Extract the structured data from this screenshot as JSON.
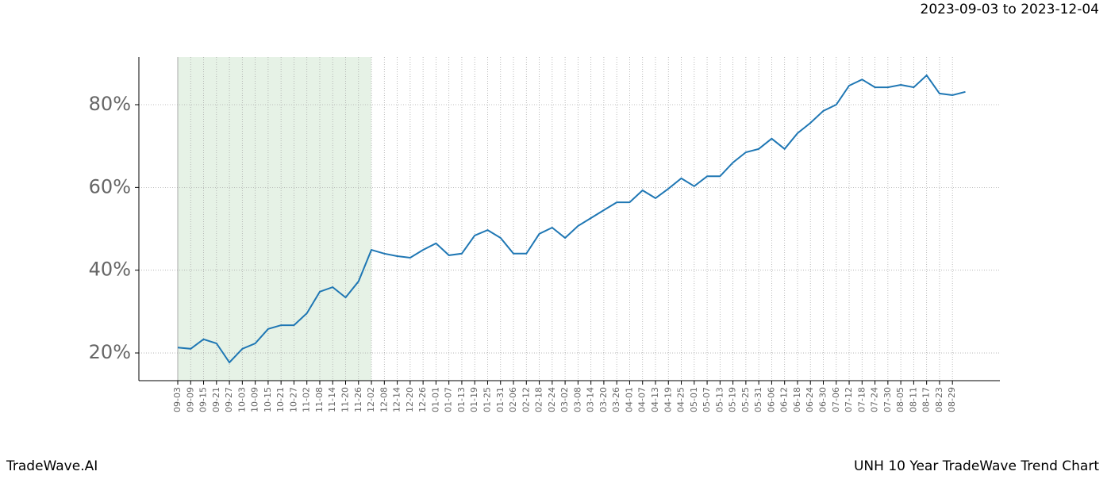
{
  "chart_data": {
    "type": "line",
    "subtitle": "2023-09-03 to 2023-12-04",
    "footer_left": "TradeWave.AI",
    "footer_right": "UNH 10 Year TradeWave Trend Chart",
    "categories": [
      "09-03",
      "09-09",
      "09-15",
      "09-21",
      "09-27",
      "10-03",
      "10-09",
      "10-15",
      "10-21",
      "10-27",
      "11-02",
      "11-08",
      "11-14",
      "11-20",
      "11-26",
      "12-02",
      "12-08",
      "12-14",
      "12-20",
      "12-26",
      "01-01",
      "01-07",
      "01-13",
      "01-19",
      "01-25",
      "01-31",
      "02-06",
      "02-12",
      "02-18",
      "02-24",
      "03-02",
      "03-08",
      "03-14",
      "03-20",
      "03-26",
      "04-01",
      "04-07",
      "04-13",
      "04-19",
      "04-25",
      "05-01",
      "05-07",
      "05-13",
      "05-19",
      "05-25",
      "05-31",
      "06-06",
      "06-12",
      "06-18",
      "06-24",
      "06-30",
      "07-06",
      "07-12",
      "07-18",
      "07-24",
      "07-30",
      "08-05",
      "08-11",
      "08-17",
      "08-23",
      "08-29",
      null
    ],
    "series": [
      {
        "color": "#1f77b4",
        "values": [
          21.3,
          21,
          23.3,
          22.3,
          17.7,
          21,
          22.3,
          25.8,
          26.7,
          26.7,
          29.6,
          34.8,
          35.9,
          33.4,
          37.3,
          44.9,
          44,
          43.4,
          43,
          44.9,
          46.5,
          43.6,
          44,
          48.4,
          49.7,
          47.8,
          44,
          44,
          48.8,
          50.3,
          47.8,
          50.7,
          52.6,
          54.5,
          56.4,
          56.4,
          59.3,
          57.4,
          59.7,
          62.2,
          60.3,
          62.7,
          62.7,
          66,
          68.5,
          69.3,
          71.8,
          69.3,
          73.1,
          75.6,
          78.5,
          80,
          84.6,
          86.1,
          84.2,
          84.2,
          84.8,
          84.2,
          87.1,
          82.7,
          82.3,
          83.1
        ]
      }
    ],
    "highlight": {
      "range": [
        0,
        15
      ],
      "color": "#e6f2e6"
    },
    "ylim": [
      13.3,
      91.5
    ],
    "yticks": [
      {
        "value": 20,
        "label": "20%"
      },
      {
        "value": 40,
        "label": "40%"
      },
      {
        "value": 60,
        "label": "60%"
      },
      {
        "value": 80,
        "label": "80%"
      }
    ],
    "grid": true
  }
}
